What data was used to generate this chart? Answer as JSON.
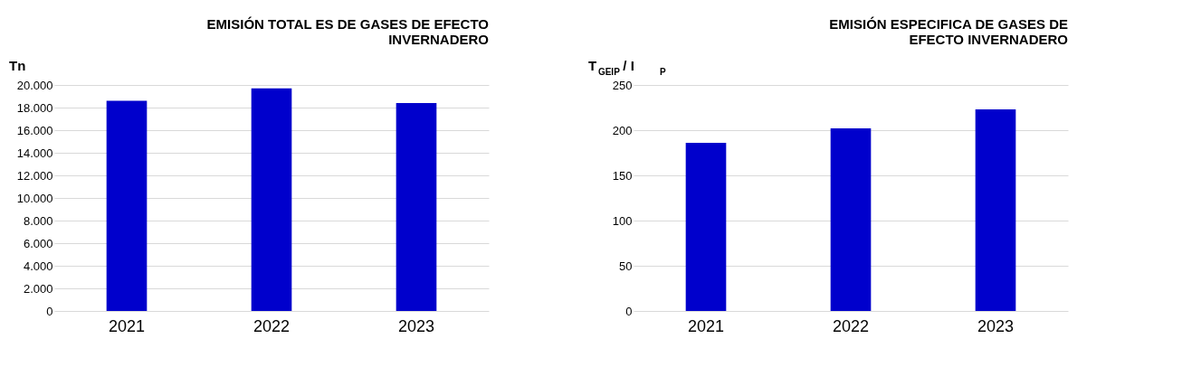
{
  "chart_data": [
    {
      "type": "bar",
      "title": "EMISIÓN TOTAL ES DE GASES DE EFECTO INVERNADERO",
      "ylabel": "Tn",
      "categories": [
        "2021",
        "2022",
        "2023"
      ],
      "series": [
        {
          "color": "#0000cc",
          "values": [
            18600,
            19700,
            18400
          ]
        }
      ],
      "ylim": [
        0,
        20000
      ],
      "yticks": [
        {
          "value": 0,
          "label": "0"
        },
        {
          "value": 2000,
          "label": "2.000"
        },
        {
          "value": 4000,
          "label": "4.000"
        },
        {
          "value": 6000,
          "label": "6.000"
        },
        {
          "value": 8000,
          "label": "8.000"
        },
        {
          "value": 10000,
          "label": "10.000"
        },
        {
          "value": 12000,
          "label": "12.000"
        },
        {
          "value": 14000,
          "label": "14.000"
        },
        {
          "value": 16000,
          "label": "16.000"
        },
        {
          "value": 18000,
          "label": "18.000"
        },
        {
          "value": 20000,
          "label": "20.000"
        }
      ],
      "grid": "y"
    },
    {
      "type": "bar",
      "title": "EMISIÓN ESPECIFICA DE GASES DE EFECTO INVERNADERO",
      "ylabel": "T$_{GEIP}$ / I$_{P}$",
      "categories": [
        "2021",
        "2022",
        "2023"
      ],
      "series": [
        {
          "color": "#0000cc",
          "values": [
            186,
            202,
            223
          ]
        }
      ],
      "ylim": [
        0,
        250
      ],
      "yticks": [
        0,
        50,
        100,
        150,
        200,
        250
      ],
      "grid": "y"
    }
  ]
}
